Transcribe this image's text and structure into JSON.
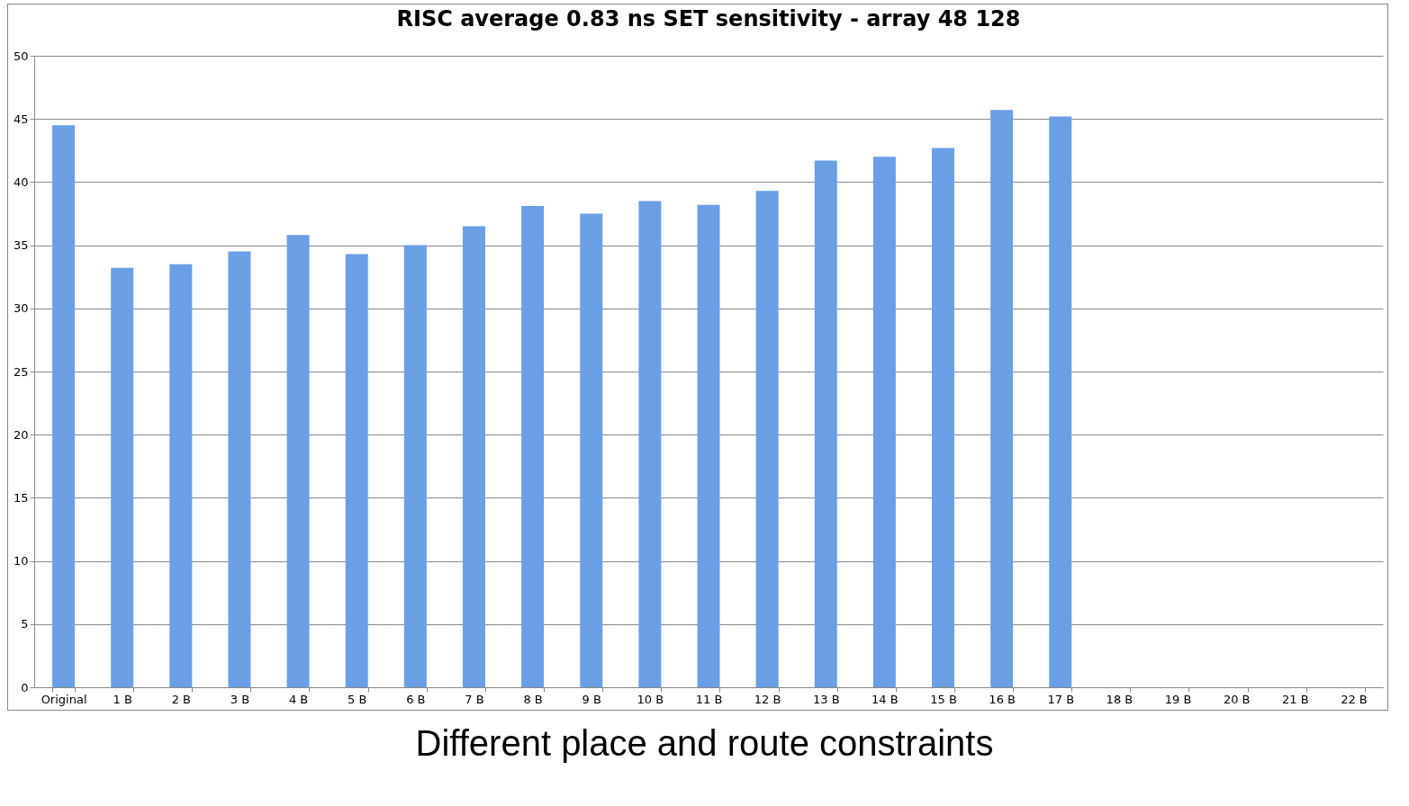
{
  "chart_data": {
    "type": "bar",
    "title": "RISC average 0.83 ns SET sensitivity - array 48 128",
    "categories": [
      "Original",
      "1 B",
      "2 B",
      "3 B",
      "4 B",
      "5 B",
      "6 B",
      "7 B",
      "8 B",
      "9 B",
      "10 B",
      "11 B",
      "12 B",
      "13 B",
      "14 B",
      "15 B",
      "16 B",
      "17 B",
      "18 B",
      "19 B",
      "20 B",
      "21 B",
      "22 B"
    ],
    "values": [
      44.5,
      33.2,
      33.5,
      34.5,
      35.8,
      34.3,
      35.0,
      36.5,
      38.1,
      37.5,
      38.5,
      38.2,
      39.3,
      41.7,
      42.0,
      42.7,
      45.7,
      45.2,
      null,
      null,
      null,
      null,
      null
    ],
    "color": "#6a9fe6",
    "ylim": [
      0,
      50
    ],
    "yticks": [
      0,
      5,
      10,
      15,
      20,
      25,
      30,
      35,
      40,
      45,
      50
    ],
    "grid": "y",
    "annotations": [
      "Different place and route constraints"
    ]
  }
}
